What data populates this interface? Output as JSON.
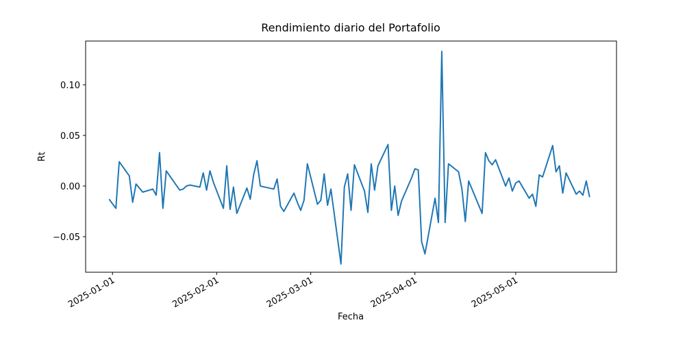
{
  "chart_data": {
    "type": "line",
    "title": "Rendimiento diario del Portafolio",
    "x_label": "Fecha",
    "y_label": "Rt",
    "color": "#1f77b4",
    "x": [
      "2024-12-31",
      "2025-01-02",
      "2025-01-03",
      "2025-01-06",
      "2025-01-07",
      "2025-01-08",
      "2025-01-10",
      "2025-01-13",
      "2025-01-14",
      "2025-01-15",
      "2025-01-16",
      "2025-01-17",
      "2025-01-21",
      "2025-01-22",
      "2025-01-23",
      "2025-01-24",
      "2025-01-27",
      "2025-01-28",
      "2025-01-29",
      "2025-01-30",
      "2025-01-31",
      "2025-02-03",
      "2025-02-04",
      "2025-02-05",
      "2025-02-06",
      "2025-02-07",
      "2025-02-10",
      "2025-02-11",
      "2025-02-12",
      "2025-02-13",
      "2025-02-14",
      "2025-02-18",
      "2025-02-19",
      "2025-02-20",
      "2025-02-21",
      "2025-02-24",
      "2025-02-25",
      "2025-02-26",
      "2025-02-27",
      "2025-02-28",
      "2025-03-03",
      "2025-03-04",
      "2025-03-05",
      "2025-03-06",
      "2025-03-07",
      "2025-03-10",
      "2025-03-11",
      "2025-03-12",
      "2025-03-13",
      "2025-03-14",
      "2025-03-17",
      "2025-03-18",
      "2025-03-19",
      "2025-03-20",
      "2025-03-21",
      "2025-03-24",
      "2025-03-25",
      "2025-03-26",
      "2025-03-27",
      "2025-03-28",
      "2025-03-31",
      "2025-04-01",
      "2025-04-02",
      "2025-04-03",
      "2025-04-04",
      "2025-04-07",
      "2025-04-08",
      "2025-04-09",
      "2025-04-10",
      "2025-04-11",
      "2025-04-14",
      "2025-04-15",
      "2025-04-16",
      "2025-04-17",
      "2025-04-21",
      "2025-04-22",
      "2025-04-23",
      "2025-04-24",
      "2025-04-25",
      "2025-04-28",
      "2025-04-29",
      "2025-04-30",
      "2025-05-01",
      "2025-05-02",
      "2025-05-05",
      "2025-05-06",
      "2025-05-07",
      "2025-05-08",
      "2025-05-09",
      "2025-05-12",
      "2025-05-13",
      "2025-05-14",
      "2025-05-15",
      "2025-05-16",
      "2025-05-19",
      "2025-05-20",
      "2025-05-21",
      "2025-05-22",
      "2025-05-23"
    ],
    "values": [
      -0.013,
      -0.022,
      0.024,
      0.01,
      -0.016,
      0.002,
      -0.006,
      -0.003,
      -0.009,
      0.033,
      -0.022,
      0.015,
      -0.004,
      -0.003,
      0.0,
      0.001,
      -0.001,
      0.013,
      -0.004,
      0.015,
      0.004,
      -0.022,
      0.02,
      -0.023,
      -0.001,
      -0.027,
      -0.002,
      -0.013,
      0.011,
      0.025,
      0.0,
      -0.003,
      0.007,
      -0.02,
      -0.025,
      -0.007,
      -0.016,
      -0.024,
      -0.014,
      0.022,
      -0.018,
      -0.014,
      0.012,
      -0.019,
      -0.003,
      -0.077,
      -0.001,
      0.012,
      -0.024,
      0.021,
      -0.005,
      -0.026,
      0.022,
      -0.004,
      0.02,
      0.041,
      -0.024,
      0.0,
      -0.029,
      -0.015,
      0.008,
      0.017,
      0.016,
      -0.055,
      -0.067,
      -0.012,
      -0.036,
      0.133,
      -0.036,
      0.022,
      0.014,
      -0.003,
      -0.035,
      0.005,
      -0.027,
      0.033,
      0.025,
      0.021,
      0.026,
      0.0,
      0.008,
      -0.005,
      0.003,
      0.005,
      -0.012,
      -0.008,
      -0.02,
      0.011,
      0.009,
      0.04,
      0.014,
      0.02,
      -0.007,
      0.013,
      -0.008,
      -0.005,
      -0.009,
      0.005,
      -0.011
    ],
    "xlim": [
      "2024-12-24",
      "2025-05-31"
    ],
    "xticks": [
      "2025-01-01",
      "2025-02-01",
      "2025-03-01",
      "2025-04-01",
      "2025-05-01"
    ],
    "ylim": [
      -0.0851,
      0.1432
    ],
    "yticks": [
      {
        "value": -0.05,
        "label": "−0.05"
      },
      {
        "value": 0,
        "label": "0.00"
      },
      {
        "value": 0.05,
        "label": "0.05"
      },
      {
        "value": 0.1,
        "label": "0.10"
      }
    ]
  }
}
